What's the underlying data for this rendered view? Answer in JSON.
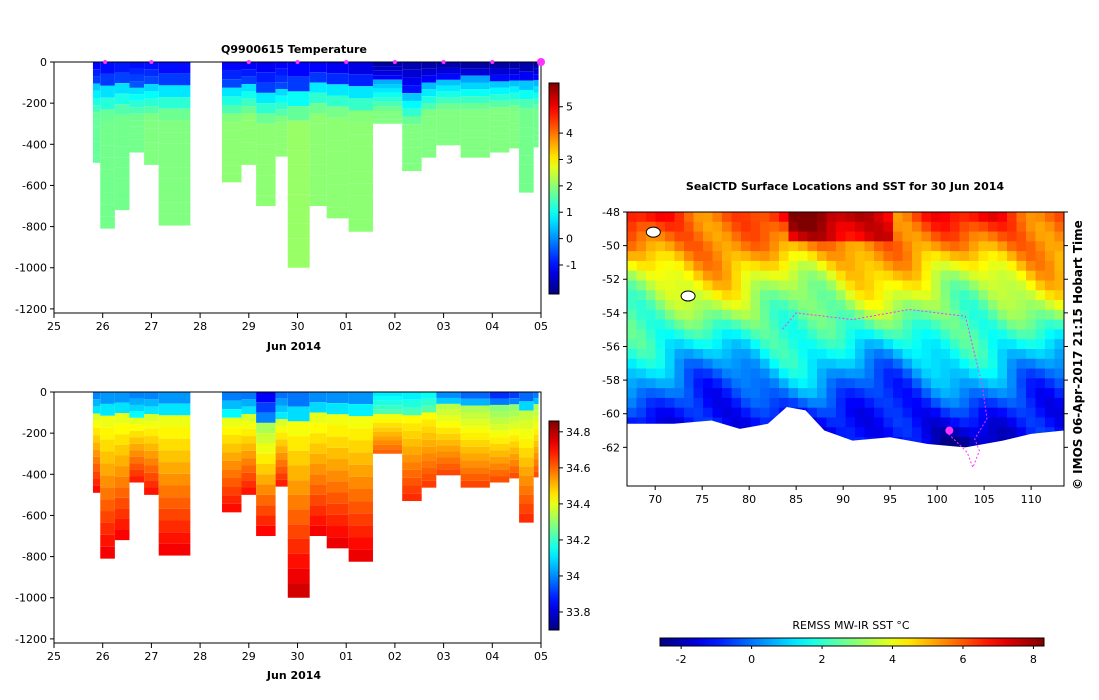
{
  "chart_data": [
    {
      "type": "heatmap",
      "variable": "temperature",
      "title": "Q9900615  Temperature",
      "xlabel": "Jun 2014",
      "x_tick_labels": [
        "25",
        "26",
        "27",
        "28",
        "29",
        "30",
        "01",
        "02",
        "03",
        "04",
        "05"
      ],
      "x_range_days": [
        0,
        10
      ],
      "y_tick_labels": [
        "0",
        "-200",
        "-400",
        "-600",
        "-800",
        "-1000",
        "-1200"
      ],
      "y_ticks": [
        0,
        -200,
        -400,
        -600,
        -800,
        -1000,
        -1200
      ],
      "ylim": [
        -1220,
        0
      ],
      "colorbar": {
        "range": [
          -2.1,
          5.9
        ],
        "ticks": [
          5,
          4,
          3,
          2,
          1,
          0,
          -1
        ],
        "tick_labels": [
          "5",
          "4",
          "3",
          "2",
          "1",
          "0",
          "-1"
        ]
      },
      "profile_markers_day": [
        1.05,
        2.0,
        4.0,
        5.0,
        6.0,
        7.0,
        8.0,
        9.0,
        10.0
      ],
      "casts": [
        {
          "start": 0.8,
          "end": 0.95,
          "bottom": -490,
          "surface_value": -1.2,
          "thermocline": -110,
          "deep_value": 1.7
        },
        {
          "start": 0.95,
          "end": 1.25,
          "bottom": -810,
          "surface_value": -1.2,
          "thermocline": -120,
          "deep_value": 1.8
        },
        {
          "start": 1.25,
          "end": 1.55,
          "bottom": -720,
          "surface_value": -1.1,
          "thermocline": -110,
          "deep_value": 1.8
        },
        {
          "start": 1.55,
          "end": 1.85,
          "bottom": -440,
          "surface_value": -1.1,
          "thermocline": -120,
          "deep_value": 1.8
        },
        {
          "start": 1.85,
          "end": 2.15,
          "bottom": -500,
          "surface_value": -1.1,
          "thermocline": -120,
          "deep_value": 1.9
        },
        {
          "start": 2.15,
          "end": 2.8,
          "bottom": -795,
          "surface_value": -1.2,
          "thermocline": -120,
          "deep_value": 1.9
        },
        {
          "start": 3.45,
          "end": 3.85,
          "bottom": -585,
          "surface_value": -1.2,
          "thermocline": -130,
          "deep_value": 2.0
        },
        {
          "start": 3.85,
          "end": 4.15,
          "bottom": -500,
          "surface_value": -1.3,
          "thermocline": -110,
          "deep_value": 2.0
        },
        {
          "start": 4.15,
          "end": 4.55,
          "bottom": -700,
          "surface_value": -1.3,
          "thermocline": -150,
          "deep_value": 2.0
        },
        {
          "start": 4.55,
          "end": 4.8,
          "bottom": -460,
          "surface_value": -1.2,
          "thermocline": -140,
          "deep_value": 2.0
        },
        {
          "start": 4.8,
          "end": 5.25,
          "bottom": -1000,
          "surface_value": -1.3,
          "thermocline": -140,
          "deep_value": 2.1
        },
        {
          "start": 5.25,
          "end": 5.6,
          "bottom": -700,
          "surface_value": -1.3,
          "thermocline": -100,
          "deep_value": 2.0
        },
        {
          "start": 5.6,
          "end": 6.05,
          "bottom": -760,
          "surface_value": -1.4,
          "thermocline": -110,
          "deep_value": 2.0
        },
        {
          "start": 6.05,
          "end": 6.55,
          "bottom": -825,
          "surface_value": -1.5,
          "thermocline": -120,
          "deep_value": 2.0
        },
        {
          "start": 6.55,
          "end": 7.15,
          "bottom": -300,
          "surface_value": -1.9,
          "thermocline": -90,
          "deep_value": 1.9
        },
        {
          "start": 7.15,
          "end": 7.55,
          "bottom": -530,
          "surface_value": -1.8,
          "thermocline": -150,
          "deep_value": 1.9
        },
        {
          "start": 7.55,
          "end": 7.85,
          "bottom": -465,
          "surface_value": -1.9,
          "thermocline": -100,
          "deep_value": 1.9
        },
        {
          "start": 7.85,
          "end": 8.35,
          "bottom": -405,
          "surface_value": -1.9,
          "thermocline": -80,
          "deep_value": 1.9
        },
        {
          "start": 8.35,
          "end": 8.95,
          "bottom": -465,
          "surface_value": -2.0,
          "thermocline": -80,
          "deep_value": 1.9
        },
        {
          "start": 8.95,
          "end": 9.35,
          "bottom": -440,
          "surface_value": -2.0,
          "thermocline": -80,
          "deep_value": 1.9
        },
        {
          "start": 9.35,
          "end": 9.55,
          "bottom": -420,
          "surface_value": -2.0,
          "thermocline": -80,
          "deep_value": 1.9
        },
        {
          "start": 9.55,
          "end": 9.85,
          "bottom": -635,
          "surface_value": -2.0,
          "thermocline": -80,
          "deep_value": 1.8
        },
        {
          "start": 9.85,
          "end": 9.95,
          "bottom": -415,
          "surface_value": -2.0,
          "thermocline": -80,
          "deep_value": 1.8
        }
      ]
    },
    {
      "type": "heatmap",
      "variable": "salinity",
      "title": "",
      "xlabel": "Jun 2014",
      "x_tick_labels": [
        "25",
        "26",
        "27",
        "28",
        "29",
        "30",
        "01",
        "02",
        "03",
        "04",
        "05"
      ],
      "x_range_days": [
        0,
        10
      ],
      "y_tick_labels": [
        "0",
        "-200",
        "-400",
        "-600",
        "-800",
        "-1000",
        "-1200"
      ],
      "y_ticks": [
        0,
        -200,
        -400,
        -600,
        -800,
        -1000,
        -1200
      ],
      "ylim": [
        -1220,
        0
      ],
      "colorbar": {
        "range": [
          33.7,
          34.86
        ],
        "ticks": [
          34.8,
          34.6,
          34.4,
          34.2,
          34,
          33.8
        ],
        "tick_labels": [
          "34.8",
          "34.6",
          "34.4",
          "34.2",
          "34",
          "33.8"
        ]
      },
      "casts": [
        {
          "start": 0.8,
          "end": 0.95,
          "bottom": -490,
          "surface_value": 33.97,
          "halocline": -120,
          "deep_value": 34.72
        },
        {
          "start": 0.95,
          "end": 1.25,
          "bottom": -810,
          "surface_value": 33.97,
          "halocline": -120,
          "deep_value": 34.74
        },
        {
          "start": 1.25,
          "end": 1.55,
          "bottom": -720,
          "surface_value": 33.97,
          "halocline": -110,
          "deep_value": 34.73
        },
        {
          "start": 1.55,
          "end": 1.85,
          "bottom": -440,
          "surface_value": 33.97,
          "halocline": -120,
          "deep_value": 34.7
        },
        {
          "start": 1.85,
          "end": 2.15,
          "bottom": -500,
          "surface_value": 33.97,
          "halocline": -120,
          "deep_value": 34.71
        },
        {
          "start": 2.15,
          "end": 2.8,
          "bottom": -795,
          "surface_value": 33.97,
          "halocline": -120,
          "deep_value": 34.74
        },
        {
          "start": 3.45,
          "end": 3.85,
          "bottom": -585,
          "surface_value": 33.95,
          "halocline": -110,
          "deep_value": 34.72
        },
        {
          "start": 3.85,
          "end": 4.15,
          "bottom": -500,
          "surface_value": 33.95,
          "halocline": -110,
          "deep_value": 34.71
        },
        {
          "start": 4.15,
          "end": 4.55,
          "bottom": -700,
          "surface_value": 33.8,
          "halocline": -150,
          "deep_value": 34.73
        },
        {
          "start": 4.55,
          "end": 4.8,
          "bottom": -460,
          "surface_value": 33.95,
          "halocline": -130,
          "deep_value": 34.7
        },
        {
          "start": 4.8,
          "end": 5.25,
          "bottom": -1000,
          "surface_value": 33.92,
          "halocline": -130,
          "deep_value": 34.78
        },
        {
          "start": 5.25,
          "end": 5.6,
          "bottom": -700,
          "surface_value": 33.96,
          "halocline": -110,
          "deep_value": 34.74
        },
        {
          "start": 5.6,
          "end": 6.05,
          "bottom": -760,
          "surface_value": 33.96,
          "halocline": -110,
          "deep_value": 34.75
        },
        {
          "start": 6.05,
          "end": 6.55,
          "bottom": -825,
          "surface_value": 33.96,
          "halocline": -110,
          "deep_value": 34.75
        },
        {
          "start": 6.55,
          "end": 7.15,
          "bottom": -300,
          "surface_value": 34.1,
          "halocline": -100,
          "deep_value": 34.62
        },
        {
          "start": 7.15,
          "end": 7.55,
          "bottom": -530,
          "surface_value": 34.1,
          "halocline": -120,
          "deep_value": 34.68
        },
        {
          "start": 7.55,
          "end": 7.85,
          "bottom": -465,
          "surface_value": 34.12,
          "halocline": -100,
          "deep_value": 34.66
        },
        {
          "start": 7.85,
          "end": 8.35,
          "bottom": -405,
          "surface_value": 33.97,
          "halocline": -70,
          "deep_value": 34.65
        },
        {
          "start": 8.35,
          "end": 8.95,
          "bottom": -465,
          "surface_value": 33.92,
          "halocline": -70,
          "deep_value": 34.65
        },
        {
          "start": 8.95,
          "end": 9.35,
          "bottom": -440,
          "surface_value": 33.85,
          "halocline": -70,
          "deep_value": 34.64
        },
        {
          "start": 9.35,
          "end": 9.55,
          "bottom": -420,
          "surface_value": 33.87,
          "halocline": -70,
          "deep_value": 34.64
        },
        {
          "start": 9.55,
          "end": 9.85,
          "bottom": -635,
          "surface_value": 33.9,
          "halocline": -70,
          "deep_value": 34.68
        },
        {
          "start": 9.85,
          "end": 9.95,
          "bottom": -415,
          "surface_value": 33.95,
          "halocline": -70,
          "deep_value": 34.64
        }
      ]
    },
    {
      "type": "heatmap",
      "variable": "sea surface temperature map",
      "title": "SealCTD Surface Locations and SST for 30 Jun 2014",
      "x_tick_labels": [
        "70",
        "75",
        "80",
        "85",
        "90",
        "95",
        "100",
        "105",
        "110"
      ],
      "x_ticks": [
        70,
        75,
        80,
        85,
        90,
        95,
        100,
        105,
        110
      ],
      "xlim": [
        67,
        113.5
      ],
      "y_tick_labels": [
        "-48",
        "-50",
        "-52",
        "-54",
        "-56",
        "-58",
        "-60",
        "-62"
      ],
      "y_ticks": [
        -48,
        -50,
        -52,
        -54,
        -56,
        -58,
        -60,
        -62
      ],
      "ylim": [
        -64.3,
        -48
      ],
      "colorbar": {
        "label": "REMSS MW-IR SST °C",
        "range": [
          -2.6,
          8.3
        ],
        "ticks": [
          -2,
          0,
          2,
          4,
          6,
          8
        ],
        "tick_labels": [
          "-2",
          "0",
          "2",
          "4",
          "6",
          "8"
        ]
      },
      "credit": "© IMOS 06-Apr-2017 21:15 Hobart Time",
      "sst_field_bands": [
        {
          "lat": -48.0,
          "sst": 6.5
        },
        {
          "lat": -50.0,
          "sst": 5.5
        },
        {
          "lat": -52.0,
          "sst": 4.0
        },
        {
          "lat": -54.0,
          "sst": 2.8
        },
        {
          "lat": -56.0,
          "sst": 1.5
        },
        {
          "lat": -58.0,
          "sst": 0.2
        },
        {
          "lat": -60.0,
          "sst": -1.0
        },
        {
          "lat": -61.5,
          "sst": -1.6
        }
      ],
      "ice_edge": [
        {
          "lon": 67,
          "lat": -60.6
        },
        {
          "lon": 72,
          "lat": -60.6
        },
        {
          "lon": 76,
          "lat": -60.4
        },
        {
          "lon": 79,
          "lat": -60.9
        },
        {
          "lon": 82,
          "lat": -60.6
        },
        {
          "lon": 84,
          "lat": -59.6
        },
        {
          "lon": 86,
          "lat": -59.8
        },
        {
          "lon": 88,
          "lat": -61.0
        },
        {
          "lon": 91,
          "lat": -61.6
        },
        {
          "lon": 95,
          "lat": -61.4
        },
        {
          "lon": 99,
          "lat": -61.8
        },
        {
          "lon": 103,
          "lat": -62.0
        },
        {
          "lon": 107,
          "lat": -61.6
        },
        {
          "lon": 110,
          "lat": -61.2
        },
        {
          "lon": 113.5,
          "lat": -61.0
        }
      ],
      "seal_track": [
        {
          "lon": 101.2,
          "lat": -61.2
        },
        {
          "lon": 103.2,
          "lat": -62.3
        },
        {
          "lon": 103.8,
          "lat": -63.2
        },
        {
          "lon": 104.5,
          "lat": -62.2
        },
        {
          "lon": 104.0,
          "lat": -61.5
        },
        {
          "lon": 105.3,
          "lat": -60.3
        },
        {
          "lon": 104.8,
          "lat": -58.3
        },
        {
          "lon": 103.0,
          "lat": -54.2
        },
        {
          "lon": 97.0,
          "lat": -53.8
        },
        {
          "lon": 91.0,
          "lat": -54.4
        },
        {
          "lon": 85.0,
          "lat": -54.0
        },
        {
          "lon": 83.5,
          "lat": -55.0
        }
      ],
      "current_position": {
        "lon": 101.3,
        "lat": -61.0
      },
      "islands": [
        {
          "lon": 69.8,
          "lat": -49.2
        },
        {
          "lon": 73.5,
          "lat": -53.0
        }
      ]
    }
  ]
}
